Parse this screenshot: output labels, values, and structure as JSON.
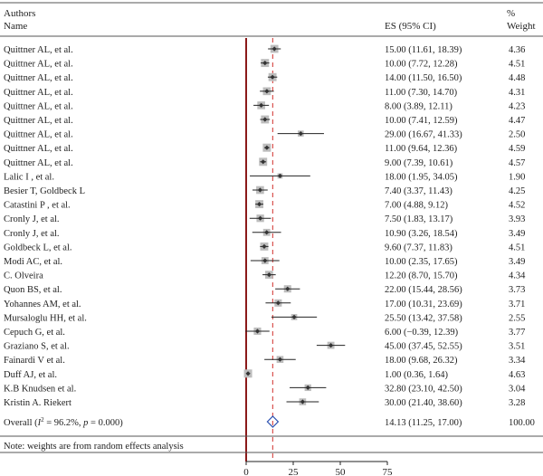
{
  "header": {
    "col_study_line1": "Authors",
    "col_study_line2": "Name",
    "col_es": "ES (95% CI)",
    "col_weight_line1": "%",
    "col_weight_line2": "Weight"
  },
  "footer_note": "Note: weights are from random effects analysis",
  "chart_data": {
    "type": "forest",
    "x_ticks": [
      0,
      25,
      50,
      75
    ],
    "xlim": [
      -1,
      80
    ],
    "null_line": 0,
    "overall_line": 14.13,
    "colors": {
      "null_line": "#8b1a1a",
      "overall_line": "#d9534f",
      "box": "#bdbdbd",
      "point": "#333333",
      "diamond": "#2a4fb0"
    },
    "studies": [
      {
        "name": "Quittner AL, et al.",
        "es": 15.0,
        "lo": 11.61,
        "hi": 18.39,
        "es_text": "15.00 (11.61, 18.39)",
        "weight": "4.36"
      },
      {
        "name": "Quittner AL, et al.",
        "es": 10.0,
        "lo": 7.72,
        "hi": 12.28,
        "es_text": "10.00 (7.72, 12.28)",
        "weight": "4.51"
      },
      {
        "name": "Quittner AL, et al.",
        "es": 14.0,
        "lo": 11.5,
        "hi": 16.5,
        "es_text": "14.00 (11.50, 16.50)",
        "weight": "4.48"
      },
      {
        "name": "Quittner AL, et al.",
        "es": 11.0,
        "lo": 7.3,
        "hi": 14.7,
        "es_text": "11.00 (7.30, 14.70)",
        "weight": "4.31"
      },
      {
        "name": "Quittner AL, et al.",
        "es": 8.0,
        "lo": 3.89,
        "hi": 12.11,
        "es_text": "8.00 (3.89, 12.11)",
        "weight": "4.23"
      },
      {
        "name": "Quittner AL, et al.",
        "es": 10.0,
        "lo": 7.41,
        "hi": 12.59,
        "es_text": "10.00 (7.41, 12.59)",
        "weight": "4.47"
      },
      {
        "name": "Quittner AL, et al.",
        "es": 29.0,
        "lo": 16.67,
        "hi": 41.33,
        "es_text": "29.00 (16.67, 41.33)",
        "weight": "2.50"
      },
      {
        "name": "Quittner AL, et al.",
        "es": 11.0,
        "lo": 9.64,
        "hi": 12.36,
        "es_text": "11.00 (9.64, 12.36)",
        "weight": "4.59"
      },
      {
        "name": "Quittner AL, et al.",
        "es": 9.0,
        "lo": 7.39,
        "hi": 10.61,
        "es_text": "9.00 (7.39, 10.61)",
        "weight": "4.57"
      },
      {
        "name": "Lalic I , et al.",
        "es": 18.0,
        "lo": 1.95,
        "hi": 34.05,
        "es_text": "18.00 (1.95, 34.05)",
        "weight": "1.90"
      },
      {
        "name": "Besier T, Goldbeck L",
        "es": 7.4,
        "lo": 3.37,
        "hi": 11.43,
        "es_text": "7.40 (3.37, 11.43)",
        "weight": "4.25"
      },
      {
        "name": "Catastini P , et al.",
        "es": 7.0,
        "lo": 4.88,
        "hi": 9.12,
        "es_text": "7.00 (4.88, 9.12)",
        "weight": "4.52"
      },
      {
        "name": "Cronly J, et al.",
        "es": 7.5,
        "lo": 1.83,
        "hi": 13.17,
        "es_text": "7.50 (1.83, 13.17)",
        "weight": "3.93"
      },
      {
        "name": "Cronly J, et al.",
        "es": 10.9,
        "lo": 3.26,
        "hi": 18.54,
        "es_text": "10.90 (3.26, 18.54)",
        "weight": "3.49"
      },
      {
        "name": "Goldbeck L, et al.",
        "es": 9.6,
        "lo": 7.37,
        "hi": 11.83,
        "es_text": "9.60 (7.37, 11.83)",
        "weight": "4.51"
      },
      {
        "name": "Modi AC, et al.",
        "es": 10.0,
        "lo": 2.35,
        "hi": 17.65,
        "es_text": "10.00 (2.35, 17.65)",
        "weight": "3.49"
      },
      {
        "name": "C. Olveira",
        "es": 12.2,
        "lo": 8.7,
        "hi": 15.7,
        "es_text": "12.20 (8.70, 15.70)",
        "weight": "4.34"
      },
      {
        "name": "Quon BS, et al.",
        "es": 22.0,
        "lo": 15.44,
        "hi": 28.56,
        "es_text": "22.00 (15.44, 28.56)",
        "weight": "3.73"
      },
      {
        "name": "Yohannes AM, et al.",
        "es": 17.0,
        "lo": 10.31,
        "hi": 23.69,
        "es_text": "17.00 (10.31, 23.69)",
        "weight": "3.71"
      },
      {
        "name": "Mursaloglu HH, et al.",
        "es": 25.5,
        "lo": 13.42,
        "hi": 37.58,
        "es_text": "25.50 (13.42, 37.58)",
        "weight": "2.55"
      },
      {
        "name": "Cepuch G, et al.",
        "es": 6.0,
        "lo": -0.39,
        "hi": 12.39,
        "es_text": "6.00 (−0.39, 12.39)",
        "weight": "3.77"
      },
      {
        "name": "Graziano S, et al.",
        "es": 45.0,
        "lo": 37.45,
        "hi": 52.55,
        "es_text": "45.00 (37.45, 52.55)",
        "weight": "3.51"
      },
      {
        "name": "Fainardi V et al.",
        "es": 18.0,
        "lo": 9.68,
        "hi": 26.32,
        "es_text": "18.00 (9.68, 26.32)",
        "weight": "3.34"
      },
      {
        "name": "Duff AJ, et al.",
        "es": 1.0,
        "lo": 0.36,
        "hi": 1.64,
        "es_text": "1.00 (0.36, 1.64)",
        "weight": "4.63"
      },
      {
        "name": "K.B Knudsen et al.",
        "es": 32.8,
        "lo": 23.1,
        "hi": 42.5,
        "es_text": "32.80 (23.10, 42.50)",
        "weight": "3.04"
      },
      {
        "name": "Kristin A. Riekert",
        "es": 30.0,
        "lo": 21.4,
        "hi": 38.6,
        "es_text": "30.00 (21.40, 38.60)",
        "weight": "3.28"
      }
    ],
    "overall": {
      "label_prefix": "Overall (",
      "label_i2": "I",
      "label_rest": " = 96.2%, ",
      "label_p": "p",
      "label_end": " = 0.000)",
      "es": 14.13,
      "lo": 11.25,
      "hi": 17.0,
      "es_text": "14.13 (11.25, 17.00)",
      "weight": "100.00"
    }
  }
}
